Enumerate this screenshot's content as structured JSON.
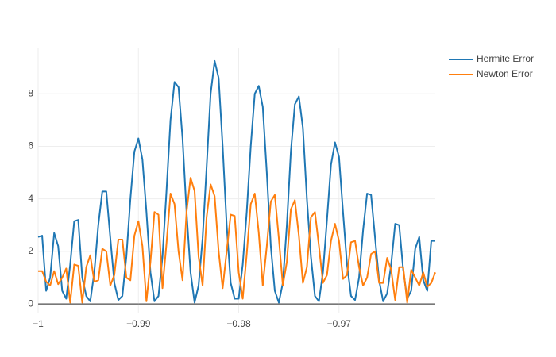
{
  "chart_data": {
    "type": "line",
    "x": [
      -1,
      -0.9996,
      -0.9992,
      -0.9988,
      -0.9984,
      -0.998,
      -0.9976,
      -0.9972,
      -0.9968,
      -0.9964,
      -0.996,
      -0.9956,
      -0.9952,
      -0.9948,
      -0.9944,
      -0.994,
      -0.9936,
      -0.9932,
      -0.9928,
      -0.9924,
      -0.992,
      -0.9916,
      -0.9912,
      -0.9908,
      -0.9904,
      -0.99,
      -0.9896,
      -0.9892,
      -0.9888,
      -0.9884,
      -0.988,
      -0.9876,
      -0.9872,
      -0.9868,
      -0.9864,
      -0.986,
      -0.9856,
      -0.9852,
      -0.9848,
      -0.9844,
      -0.984,
      -0.9836,
      -0.9832,
      -0.9828,
      -0.9824,
      -0.982,
      -0.9816,
      -0.9812,
      -0.9808,
      -0.9804,
      -0.98,
      -0.9796,
      -0.9792,
      -0.9788,
      -0.9784,
      -0.978,
      -0.9776,
      -0.9772,
      -0.9768,
      -0.9764,
      -0.976,
      -0.9756,
      -0.9752,
      -0.9748,
      -0.9744,
      -0.974,
      -0.9736,
      -0.9732,
      -0.9728,
      -0.9724,
      -0.972,
      -0.9716,
      -0.9712,
      -0.9708,
      -0.9704,
      -0.97,
      -0.9696,
      -0.9692,
      -0.9688,
      -0.9684,
      -0.968,
      -0.9676,
      -0.9672,
      -0.9668,
      -0.9664,
      -0.966,
      -0.9656,
      -0.9652,
      -0.9648,
      -0.9644,
      -0.964,
      -0.9636,
      -0.9632,
      -0.9628,
      -0.9624,
      -0.962,
      -0.9616,
      -0.9612,
      -0.9608,
      -0.9604
    ],
    "series": [
      {
        "name": "Hermite Error",
        "color": "#1f77b4",
        "values": [
          2.55,
          2.6,
          0.5,
          1.0,
          2.7,
          2.2,
          0.5,
          0.2,
          1.5,
          3.15,
          3.2,
          1.0,
          0.3,
          0.1,
          1.2,
          3.0,
          4.28,
          4.28,
          2.5,
          0.8,
          0.15,
          0.3,
          1.8,
          4.0,
          5.8,
          6.3,
          5.5,
          3.5,
          1.2,
          0.1,
          0.3,
          1.8,
          4.3,
          7.0,
          8.45,
          8.25,
          6.3,
          3.5,
          1.2,
          0.05,
          0.7,
          2.5,
          5.2,
          8.0,
          9.25,
          8.6,
          6.0,
          3.0,
          0.8,
          0.2,
          0.2,
          1.5,
          3.5,
          6.0,
          8.0,
          8.3,
          7.5,
          5.0,
          2.2,
          0.5,
          0.05,
          0.8,
          3.0,
          5.8,
          7.6,
          7.9,
          6.7,
          4.0,
          1.8,
          0.3,
          0.1,
          1.2,
          3.2,
          5.3,
          6.15,
          5.6,
          3.5,
          1.5,
          0.3,
          0.15,
          1.0,
          2.8,
          4.2,
          4.15,
          2.5,
          0.9,
          0.1,
          0.4,
          1.5,
          3.05,
          3.0,
          1.3,
          0.2,
          0.5,
          2.1,
          2.55,
          0.9,
          0.5,
          2.4,
          2.4
        ]
      },
      {
        "name": "Newton Error",
        "color": "#ff7f0e",
        "values": [
          1.25,
          1.25,
          0.85,
          0.7,
          1.25,
          0.75,
          1.0,
          1.35,
          0.05,
          1.5,
          1.45,
          0.05,
          1.4,
          1.85,
          0.85,
          0.9,
          2.1,
          2.0,
          0.7,
          1.1,
          2.45,
          2.45,
          1.0,
          0.9,
          2.6,
          3.15,
          2.2,
          0.1,
          1.6,
          3.5,
          3.4,
          0.6,
          2.3,
          4.2,
          3.8,
          2.0,
          0.9,
          3.5,
          4.8,
          4.3,
          1.8,
          0.7,
          3.3,
          4.55,
          4.1,
          2.0,
          0.6,
          2.0,
          3.4,
          3.35,
          1.2,
          0.2,
          1.9,
          3.8,
          4.2,
          2.7,
          0.7,
          2.2,
          3.9,
          4.15,
          2.5,
          0.7,
          1.6,
          3.6,
          3.95,
          2.6,
          0.8,
          1.4,
          3.3,
          3.5,
          2.2,
          0.8,
          1.1,
          2.4,
          3.05,
          2.4,
          0.95,
          1.1,
          2.35,
          2.4,
          1.4,
          0.7,
          1.0,
          1.9,
          2.0,
          0.8,
          0.8,
          1.75,
          1.3,
          0.15,
          1.4,
          1.4,
          0.05,
          1.3,
          1.0,
          0.7,
          1.2,
          0.65,
          0.8,
          1.2
        ]
      }
    ],
    "xlim": [
      -1,
      -0.9604
    ],
    "ylim": [
      -0.36,
      9.76
    ],
    "xticks": [
      {
        "value": -1,
        "label": "−1"
      },
      {
        "value": -0.99,
        "label": "−0.99"
      },
      {
        "value": -0.98,
        "label": "−0.98"
      },
      {
        "value": -0.97,
        "label": "−0.97"
      }
    ],
    "yticks": [
      0,
      2,
      4,
      6,
      8
    ],
    "grid": true,
    "legend": "top-right"
  }
}
